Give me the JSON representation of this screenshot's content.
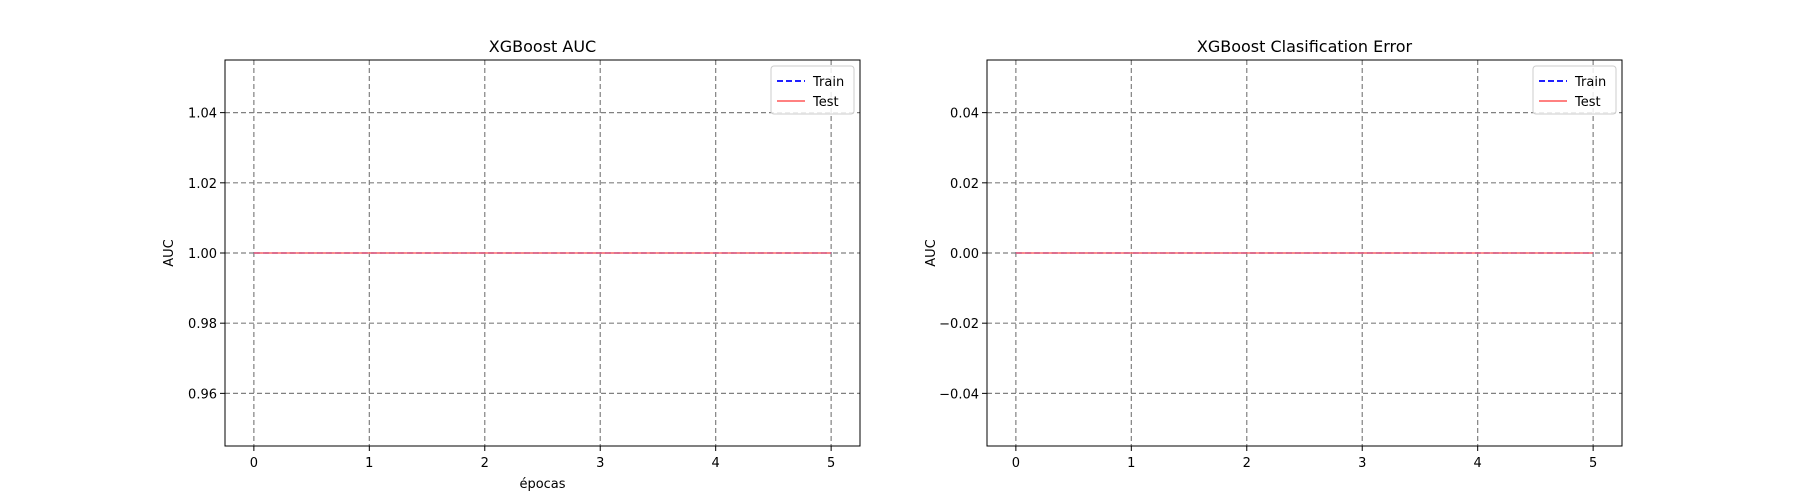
{
  "chart_data": [
    {
      "type": "line",
      "title": "XGBoost AUC",
      "xlabel": "épocas",
      "ylabel": "AUC",
      "xlim": [
        -0.25,
        5.25
      ],
      "ylim": [
        0.945,
        1.055
      ],
      "xticks": [
        0,
        1,
        2,
        3,
        4,
        5
      ],
      "xtick_labels": [
        "0",
        "1",
        "2",
        "3",
        "4",
        "5"
      ],
      "yticks": [
        0.96,
        0.98,
        1.0,
        1.02,
        1.04
      ],
      "ytick_labels": [
        "0.96",
        "0.98",
        "1.00",
        "1.02",
        "1.04"
      ],
      "grid": true,
      "legend": "top-right",
      "x": [
        0,
        1,
        2,
        3,
        4,
        5
      ],
      "series": [
        {
          "name": "Train",
          "values": [
            1,
            1,
            1,
            1,
            1,
            1
          ],
          "color": "#0000ff",
          "style": "dashed"
        },
        {
          "name": "Test",
          "values": [
            1,
            1,
            1,
            1,
            1,
            1
          ],
          "color": "#ff6f6f",
          "style": "solid"
        }
      ]
    },
    {
      "type": "line",
      "title": "XGBoost Clasification Error",
      "xlabel": "",
      "ylabel": "AUC",
      "xlim": [
        -0.25,
        5.25
      ],
      "ylim": [
        -0.055,
        0.055
      ],
      "xticks": [
        0,
        1,
        2,
        3,
        4,
        5
      ],
      "xtick_labels": [
        "0",
        "1",
        "2",
        "3",
        "4",
        "5"
      ],
      "yticks": [
        -0.04,
        -0.02,
        0.0,
        0.02,
        0.04
      ],
      "ytick_labels": [
        "−0.04",
        "−0.02",
        "0.00",
        "0.02",
        "0.04"
      ],
      "grid": true,
      "legend": "top-right",
      "x": [
        0,
        1,
        2,
        3,
        4,
        5
      ],
      "series": [
        {
          "name": "Train",
          "values": [
            0,
            0,
            0,
            0,
            0,
            0
          ],
          "color": "#0000ff",
          "style": "dashed"
        },
        {
          "name": "Test",
          "values": [
            0,
            0,
            0,
            0,
            0,
            0
          ],
          "color": "#ff6f6f",
          "style": "solid"
        }
      ]
    }
  ]
}
